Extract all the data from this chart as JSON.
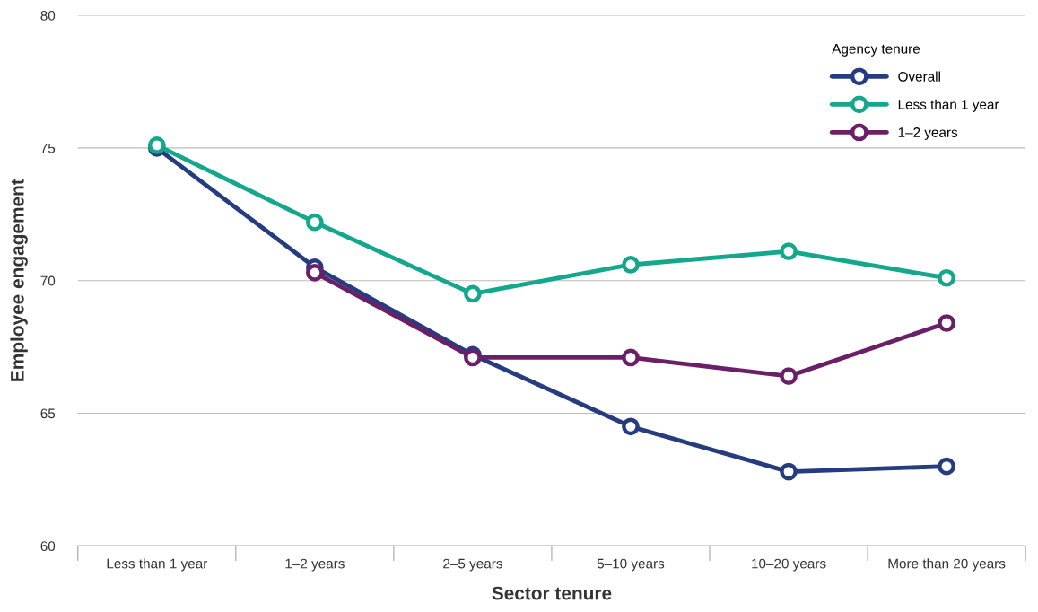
{
  "chart_data": {
    "type": "line",
    "xlabel": "Sector tenure",
    "ylabel": "Employee engagement",
    "legend_title": "Agency tenure",
    "categories": [
      "Less than 1 year",
      "1–2 years",
      "2–5 years",
      "5–10 years",
      "10–20 years",
      "More than 20 years"
    ],
    "series": [
      {
        "name": "Overall",
        "color": "#253d7f",
        "values": [
          75.0,
          70.5,
          67.2,
          64.5,
          62.8,
          63.0
        ]
      },
      {
        "name": "Less than 1 year",
        "color": "#14a78b",
        "values": [
          75.1,
          72.2,
          69.5,
          70.6,
          71.1,
          70.1
        ]
      },
      {
        "name": "1–2 years",
        "color": "#6b1f66",
        "values": [
          null,
          70.3,
          67.1,
          67.1,
          66.4,
          68.4
        ]
      }
    ],
    "ylim": [
      60,
      80
    ],
    "yticks": [
      60,
      65,
      70,
      75,
      80
    ],
    "grid": "y",
    "legend": "top right",
    "marker": "circle",
    "line_style": "solid"
  }
}
